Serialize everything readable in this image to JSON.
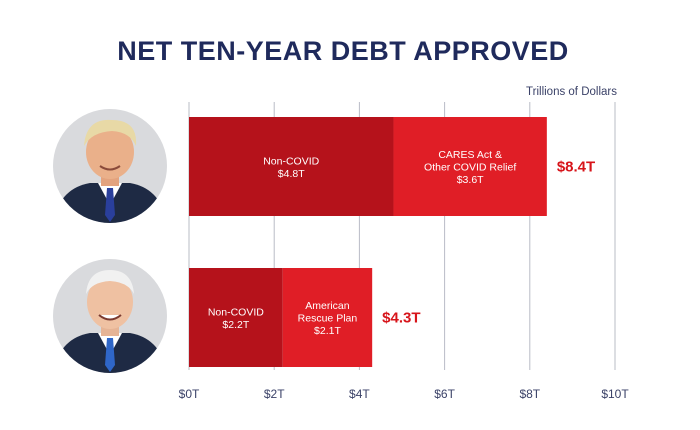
{
  "chart_data": {
    "type": "bar",
    "orientation": "horizontal",
    "stacked": true,
    "title": "NET TEN-YEAR DEBT APPROVED",
    "units_label": "Trillions of Dollars",
    "xlim": [
      0,
      10
    ],
    "ticks": [
      {
        "value": 0,
        "label": "$0T"
      },
      {
        "value": 2,
        "label": "$2T"
      },
      {
        "value": 4,
        "label": "$4T"
      },
      {
        "value": 6,
        "label": "$6T"
      },
      {
        "value": 8,
        "label": "$8T"
      },
      {
        "value": 10,
        "label": "$10T"
      }
    ],
    "grid": true,
    "bars": [
      {
        "portrait": "Trump",
        "total": 8.4,
        "total_label": "$8.4T",
        "segments": [
          {
            "value": 4.8,
            "label_lines": [
              "Non-COVID",
              "$4.8T"
            ],
            "color": "#b5121b"
          },
          {
            "value": 3.6,
            "label_lines": [
              "CARES Act &",
              "Other COVID Relief",
              "$3.6T"
            ],
            "color": "#e01e26"
          }
        ]
      },
      {
        "portrait": "Biden",
        "total": 4.3,
        "total_label": "$4.3T",
        "segments": [
          {
            "value": 2.2,
            "label_lines": [
              "Non-COVID",
              "$2.2T"
            ],
            "color": "#b5121b"
          },
          {
            "value": 2.1,
            "label_lines": [
              "American",
              "Rescue Plan",
              "$2.1T"
            ],
            "color": "#e01e26"
          }
        ]
      }
    ]
  },
  "colors": {
    "title": "#1f2a5c",
    "total_text": "#d7141a",
    "portrait_bg": "#d9dadd"
  }
}
